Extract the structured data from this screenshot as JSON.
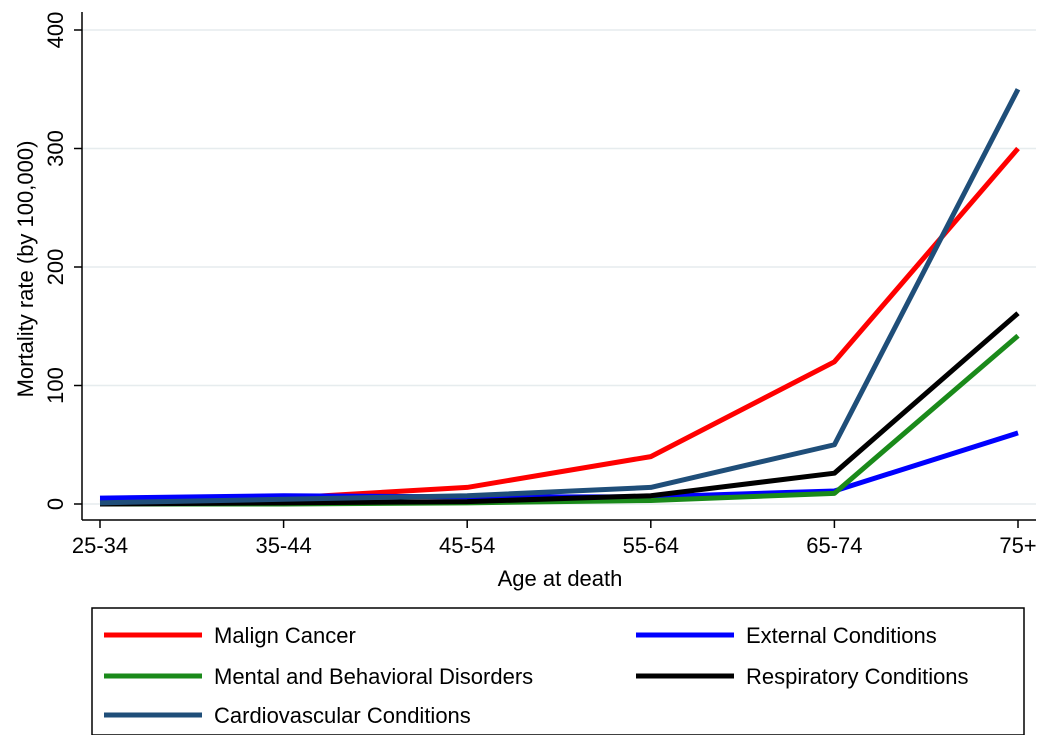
{
  "chart_data": {
    "type": "line",
    "title": "",
    "xlabel": "Age at death",
    "ylabel": "Mortality rate (by 100,000)",
    "categories": [
      "25-34",
      "35-44",
      "45-54",
      "55-64",
      "65-74",
      "75+"
    ],
    "ylim": [
      0,
      400
    ],
    "yticks": [
      0,
      100,
      200,
      300,
      400
    ],
    "grid": true,
    "legend_position": "bottom",
    "series": [
      {
        "name": "Malign Cancer",
        "color": "#ff0000",
        "values": [
          2,
          5,
          14,
          40,
          120,
          300
        ]
      },
      {
        "name": "External Conditions",
        "color": "#0000ff",
        "values": [
          5,
          7,
          6,
          6,
          11,
          60
        ]
      },
      {
        "name": "Mental and Behavioral Disorders",
        "color": "#1a8a1a",
        "values": [
          0,
          0,
          1,
          3,
          9,
          142
        ]
      },
      {
        "name": "Respiratory Conditions",
        "color": "#000000",
        "values": [
          0,
          1,
          2,
          7,
          26,
          161
        ]
      },
      {
        "name": "Cardiovascular Conditions",
        "color": "#1f4e79",
        "values": [
          1,
          4,
          7,
          14,
          50,
          350
        ]
      }
    ]
  }
}
